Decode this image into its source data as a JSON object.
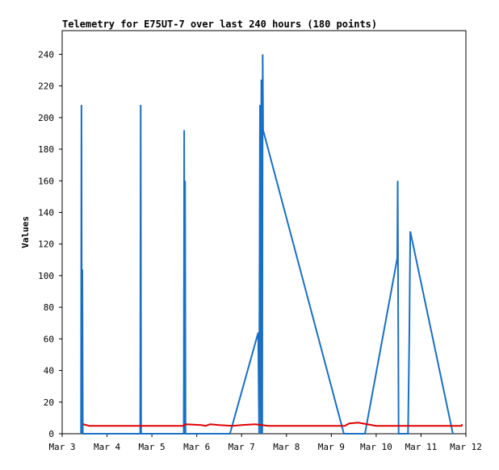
{
  "chart_data": {
    "type": "line",
    "title": "Telemetry for E75UT-7 over last 240 hours (180 points)",
    "y_label": "Values",
    "xlim": [
      3,
      12
    ],
    "xticks": [
      {
        "value": 3,
        "label": "Mar 3"
      },
      {
        "value": 4,
        "label": "Mar 4"
      },
      {
        "value": 5,
        "label": "Mar 5"
      },
      {
        "value": 6,
        "label": "Mar 6"
      },
      {
        "value": 7,
        "label": "Mar 7"
      },
      {
        "value": 8,
        "label": "Mar 8"
      },
      {
        "value": 9,
        "label": "Mar 9"
      },
      {
        "value": 10,
        "label": "Mar 10"
      },
      {
        "value": 11,
        "label": "Mar 11"
      },
      {
        "value": 12,
        "label": "Mar 12"
      }
    ],
    "ylim": [
      0,
      255
    ],
    "yticks": [
      0,
      20,
      40,
      60,
      80,
      100,
      120,
      140,
      160,
      180,
      200,
      220,
      240
    ],
    "grid": false,
    "series": [
      {
        "color": "#1a6fc4",
        "x": [
          3.42,
          3.43,
          3.44,
          3.45,
          3.46,
          4.74,
          4.75,
          4.76,
          5.71,
          5.72,
          5.73,
          5.74,
          5.75,
          6.74,
          7.37,
          7.38,
          7.39,
          7.4,
          7.41,
          7.43,
          7.44,
          7.46,
          7.47,
          7.48,
          9.28,
          9.75,
          10.47,
          10.48,
          10.49,
          10.5,
          10.71,
          10.74,
          10.76,
          11.71
        ],
        "values": [
          0,
          208,
          0,
          104,
          0,
          0,
          208,
          0,
          0,
          192,
          0,
          160,
          0,
          0,
          64,
          32,
          0,
          104,
          208,
          0,
          224,
          0,
          240,
          192,
          0,
          0,
          111,
          160,
          80,
          0,
          0,
          65,
          128,
          0
        ]
      },
      {
        "color": "#e00000",
        "x": [
          3.47,
          3.6,
          5.7,
          5.75,
          6.1,
          6.2,
          6.3,
          6.5,
          6.8,
          7.0,
          7.3,
          7.6,
          9.3,
          9.4,
          9.6,
          9.8,
          10.0,
          11.9,
          11.92
        ],
        "values": [
          6,
          5,
          5,
          6,
          5.5,
          5,
          6,
          5.5,
          5,
          5.5,
          6,
          5,
          5,
          6.5,
          7,
          6,
          5,
          5,
          6
        ]
      }
    ]
  }
}
